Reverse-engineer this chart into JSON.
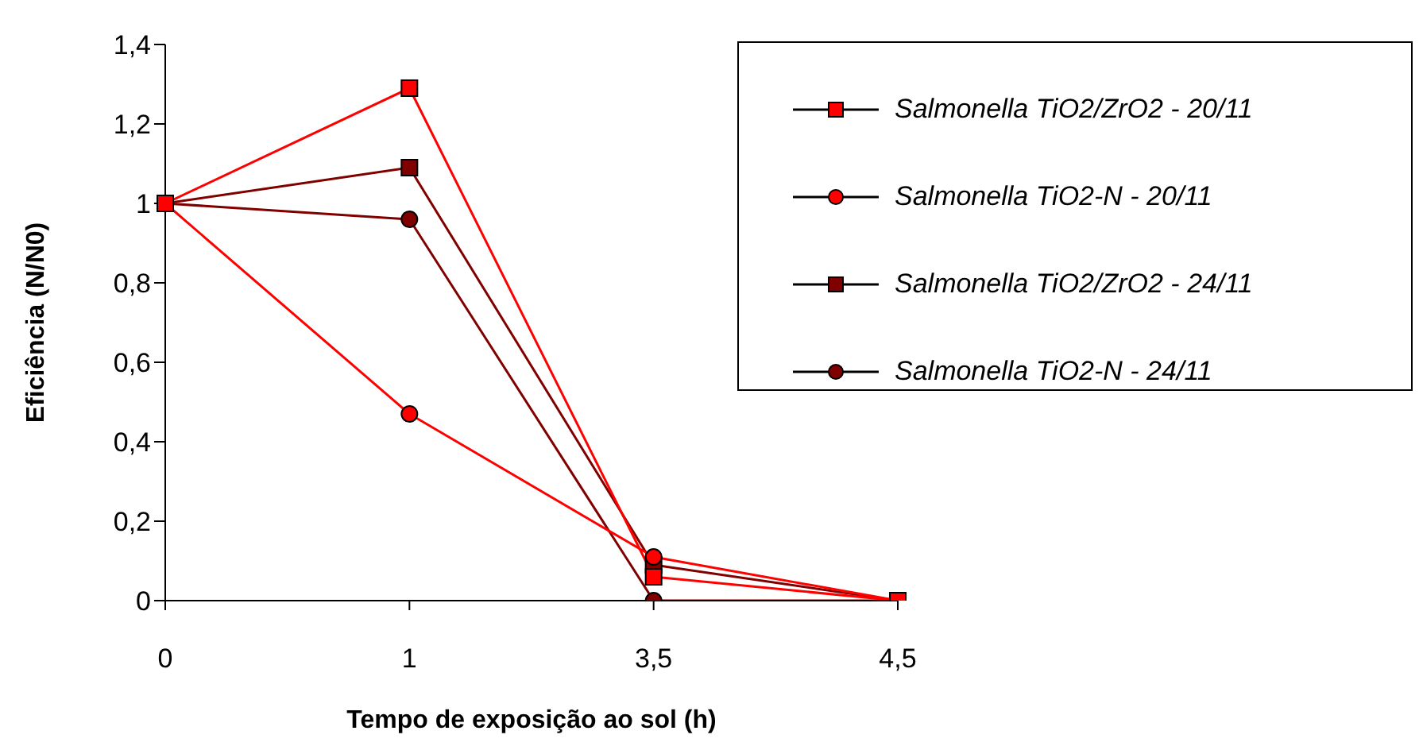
{
  "chart_data": {
    "type": "line",
    "xlabel": "Tempo de exposição ao sol (h)",
    "ylabel": "Eficiência (N/N0)",
    "categories": [
      "0",
      "1",
      "3,5",
      "4,5"
    ],
    "series": [
      {
        "name": "Salmonella TiO2/ZrO2 - 20/11",
        "color": "#ff0000",
        "marker": "square",
        "values": [
          1,
          1.29,
          0.06,
          0
        ]
      },
      {
        "name": "Salmonella TiO2-N - 20/11",
        "color": "#ff0000",
        "marker": "circle",
        "values": [
          1,
          0.47,
          0.11,
          0
        ]
      },
      {
        "name": "Salmonella TiO2/ZrO2 - 24/11",
        "color": "#800000",
        "marker": "square",
        "values": [
          1,
          1.09,
          0.09,
          0
        ]
      },
      {
        "name": "Salmonella TiO2-N - 24/11",
        "color": "#800000",
        "marker": "circle",
        "values": [
          1,
          0.96,
          0,
          0
        ]
      }
    ],
    "ylim": [
      0,
      1.4
    ],
    "yticks": [
      {
        "value": 0,
        "label": "0"
      },
      {
        "value": 0.2,
        "label": "0,2"
      },
      {
        "value": 0.4,
        "label": "0,4"
      },
      {
        "value": 0.6,
        "label": "0,6"
      },
      {
        "value": 0.8,
        "label": "0,8"
      },
      {
        "value": 1,
        "label": "1"
      },
      {
        "value": 1.2,
        "label": "1,2"
      },
      {
        "value": 1.4,
        "label": "1,4"
      }
    ],
    "legend": "top right",
    "grid": false,
    "line_style": "solid"
  }
}
